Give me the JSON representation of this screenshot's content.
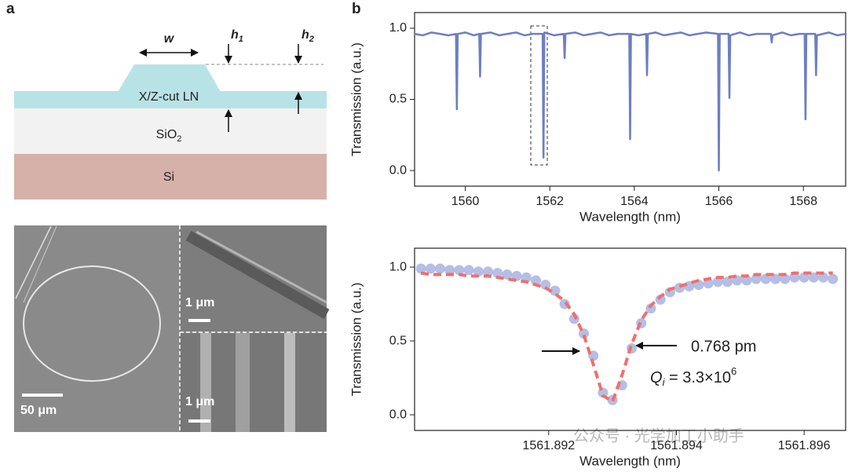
{
  "panel_a": {
    "label": "a",
    "diagram": {
      "w": "w",
      "h1": "h",
      "h1_sub": "1",
      "h2": "h",
      "h2_sub": "2",
      "ln": "X/Z-cut LN",
      "sio2": "SiO",
      "sio2_sub": "2",
      "si": "Si"
    },
    "sem": {
      "scale_main": "50 μm",
      "scale_top": "1 μm",
      "scale_bottom": "1 μm"
    }
  },
  "panel_b_label": "b",
  "watermark": "公众号 · 光学加工小助手",
  "chart_data": [
    {
      "type": "line",
      "xlabel": "Wavelength (nm)",
      "ylabel": "Transmission (a.u.)",
      "xlim": [
        1558.8,
        1569
      ],
      "ylim": [
        -0.11,
        1.11
      ],
      "xticks": [
        1560,
        1562,
        1564,
        1566,
        1568
      ],
      "yticks": [
        {
          "value": 0,
          "label": "0.0"
        },
        {
          "value": 0.5,
          "label": "0.5"
        },
        {
          "value": 1,
          "label": "1.0"
        }
      ],
      "x": [
        1558.8,
        1559.0,
        1559.2,
        1559.4,
        1559.6,
        1559.78,
        1559.8,
        1559.82,
        1560.0,
        1560.2,
        1560.33,
        1560.35,
        1560.37,
        1560.6,
        1560.8,
        1561.0,
        1561.2,
        1561.4,
        1561.6,
        1561.83,
        1561.85,
        1561.87,
        1562.1,
        1562.33,
        1562.35,
        1562.37,
        1562.6,
        1562.8,
        1563.0,
        1563.2,
        1563.4,
        1563.6,
        1563.88,
        1563.9,
        1563.92,
        1564.1,
        1564.28,
        1564.3,
        1564.32,
        1564.5,
        1564.7,
        1564.9,
        1565.1,
        1565.3,
        1565.5,
        1565.7,
        1565.98,
        1566.0,
        1566.02,
        1566.23,
        1566.25,
        1566.27,
        1566.5,
        1566.7,
        1566.9,
        1567.23,
        1567.25,
        1567.27,
        1567.5,
        1567.7,
        1567.9,
        1568.03,
        1568.05,
        1568.07,
        1568.28,
        1568.3,
        1568.32,
        1568.6,
        1568.8,
        1569.0
      ],
      "series": [
        {
          "color": "#6c7fc2",
          "mode": "line",
          "values": [
            0.96,
            0.95,
            0.97,
            0.96,
            0.95,
            0.96,
            0.43,
            0.96,
            0.97,
            0.95,
            0.96,
            0.66,
            0.96,
            0.97,
            0.95,
            0.96,
            0.97,
            0.95,
            0.96,
            0.96,
            0.09,
            0.97,
            0.95,
            0.96,
            0.79,
            0.96,
            0.97,
            0.95,
            0.96,
            0.97,
            0.95,
            0.96,
            0.96,
            0.22,
            0.96,
            0.95,
            0.96,
            0.67,
            0.96,
            0.97,
            0.95,
            0.96,
            0.97,
            0.95,
            0.96,
            0.97,
            0.96,
            0,
            0.96,
            0.96,
            0.51,
            0.95,
            0.97,
            0.95,
            0.96,
            0.96,
            0.9,
            0.95,
            0.97,
            0.95,
            0.96,
            0.96,
            0.36,
            0.96,
            0.96,
            0.67,
            0.95,
            0.97,
            0.95,
            0.96
          ]
        }
      ]
    },
    {
      "type": "line",
      "xlabel": "Wavelength (nm)",
      "ylabel": "Transmission (a.u.)",
      "xlim": [
        1561.8899,
        1561.89665
      ],
      "ylim": [
        -0.106,
        1.128
      ],
      "xticks": [
        1561.892,
        1561.894,
        1561.896
      ],
      "yticks": [
        {
          "value": 0,
          "label": "0.0"
        },
        {
          "value": 0.5,
          "label": "0.5"
        },
        {
          "value": 1,
          "label": "1.0"
        }
      ],
      "x": [
        1561.89,
        1561.89015,
        1561.8903,
        1561.89045,
        1561.8906,
        1561.89075,
        1561.8909,
        1561.89105,
        1561.8912,
        1561.89135,
        1561.8915,
        1561.89165,
        1561.8918,
        1561.89195,
        1561.8921,
        1561.89225,
        1561.8924,
        1561.89255,
        1561.8927,
        1561.89285,
        1561.893,
        1561.89315,
        1561.8933,
        1561.89345,
        1561.8936,
        1561.89375,
        1561.8939,
        1561.89405,
        1561.8942,
        1561.89435,
        1561.8945,
        1561.89465,
        1561.8948,
        1561.89495,
        1561.8951,
        1561.89525,
        1561.8954,
        1561.89555,
        1561.8957,
        1561.89585,
        1561.896,
        1561.89615,
        1561.8963,
        1561.89645
      ],
      "series": [
        {
          "color": "#a8b3e0",
          "mode": "markers",
          "values": [
            0.99,
            0.99,
            0.99,
            0.98,
            0.98,
            0.98,
            0.97,
            0.97,
            0.96,
            0.95,
            0.94,
            0.93,
            0.91,
            0.88,
            0.84,
            0.75,
            0.65,
            0.55,
            0.4,
            0.15,
            0.1,
            0.2,
            0.45,
            0.62,
            0.72,
            0.78,
            0.83,
            0.86,
            0.87,
            0.88,
            0.89,
            0.9,
            0.9,
            0.91,
            0.91,
            0.92,
            0.92,
            0.92,
            0.92,
            0.93,
            0.93,
            0.93,
            0.93,
            0.92
          ]
        },
        {
          "color": "#ef6f6c",
          "mode": "dashed",
          "values": [
            0.96,
            0.95,
            0.95,
            0.95,
            0.95,
            0.94,
            0.94,
            0.94,
            0.93,
            0.92,
            0.91,
            0.9,
            0.88,
            0.86,
            0.82,
            0.77,
            0.68,
            0.54,
            0.34,
            0.13,
            0.09,
            0.27,
            0.48,
            0.64,
            0.74,
            0.8,
            0.85,
            0.87,
            0.89,
            0.91,
            0.92,
            0.93,
            0.93,
            0.94,
            0.94,
            0.95,
            0.95,
            0.95,
            0.95,
            0.96,
            0.96,
            0.96,
            0.96,
            0.96
          ]
        }
      ],
      "annotations": {
        "fwhm": "0.768 pm",
        "q": "Q",
        "q_sub": "i",
        "q_text": " = 3.3×10",
        "q_exp": "6"
      }
    }
  ]
}
